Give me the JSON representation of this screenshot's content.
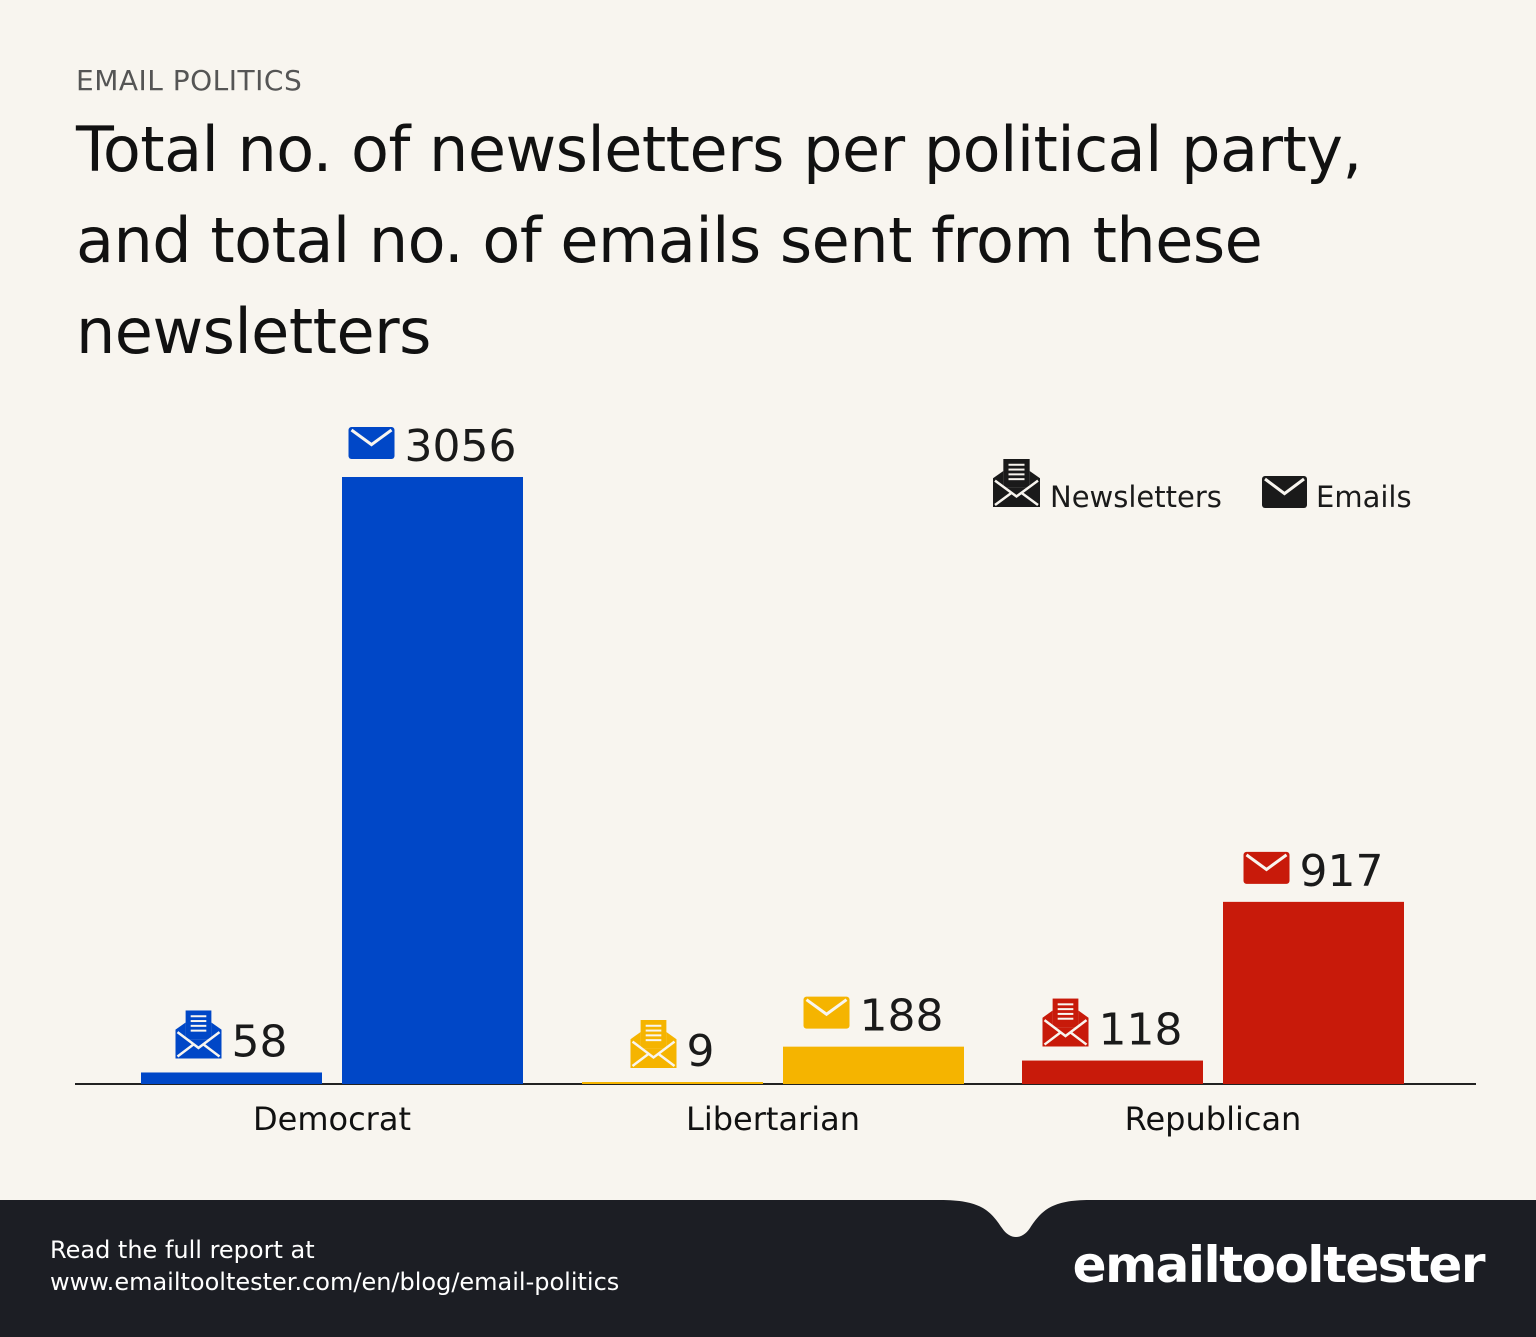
{
  "kicker": "EMAIL POLITICS",
  "title": {
    "underlined": "Total no. of newsletters",
    "rest": " per political party, and total no. of emails sent from these newsletters"
  },
  "colors": {
    "background": "#f8f5ef",
    "underline": "#e8643c",
    "footer": "#1c1e24"
  },
  "chart_data": {
    "type": "bar",
    "categories": [
      "Democrat",
      "Libertarian",
      "Republican"
    ],
    "category_colors": [
      "#0047c7",
      "#f5b400",
      "#c81a0a"
    ],
    "series": [
      {
        "name": "Newsletters",
        "icon": "newsletter-envelope-icon",
        "values": [
          58,
          9,
          118
        ]
      },
      {
        "name": "Emails",
        "icon": "envelope-icon",
        "values": [
          3056,
          188,
          917
        ]
      }
    ],
    "ylim": [
      0,
      3056
    ],
    "grid": false,
    "legend": "top-right"
  },
  "footer": {
    "line1": "Read the full report at",
    "line2": "www.emailtooltester.com/en/blog/email-politics",
    "logo": "emailtooltester"
  }
}
